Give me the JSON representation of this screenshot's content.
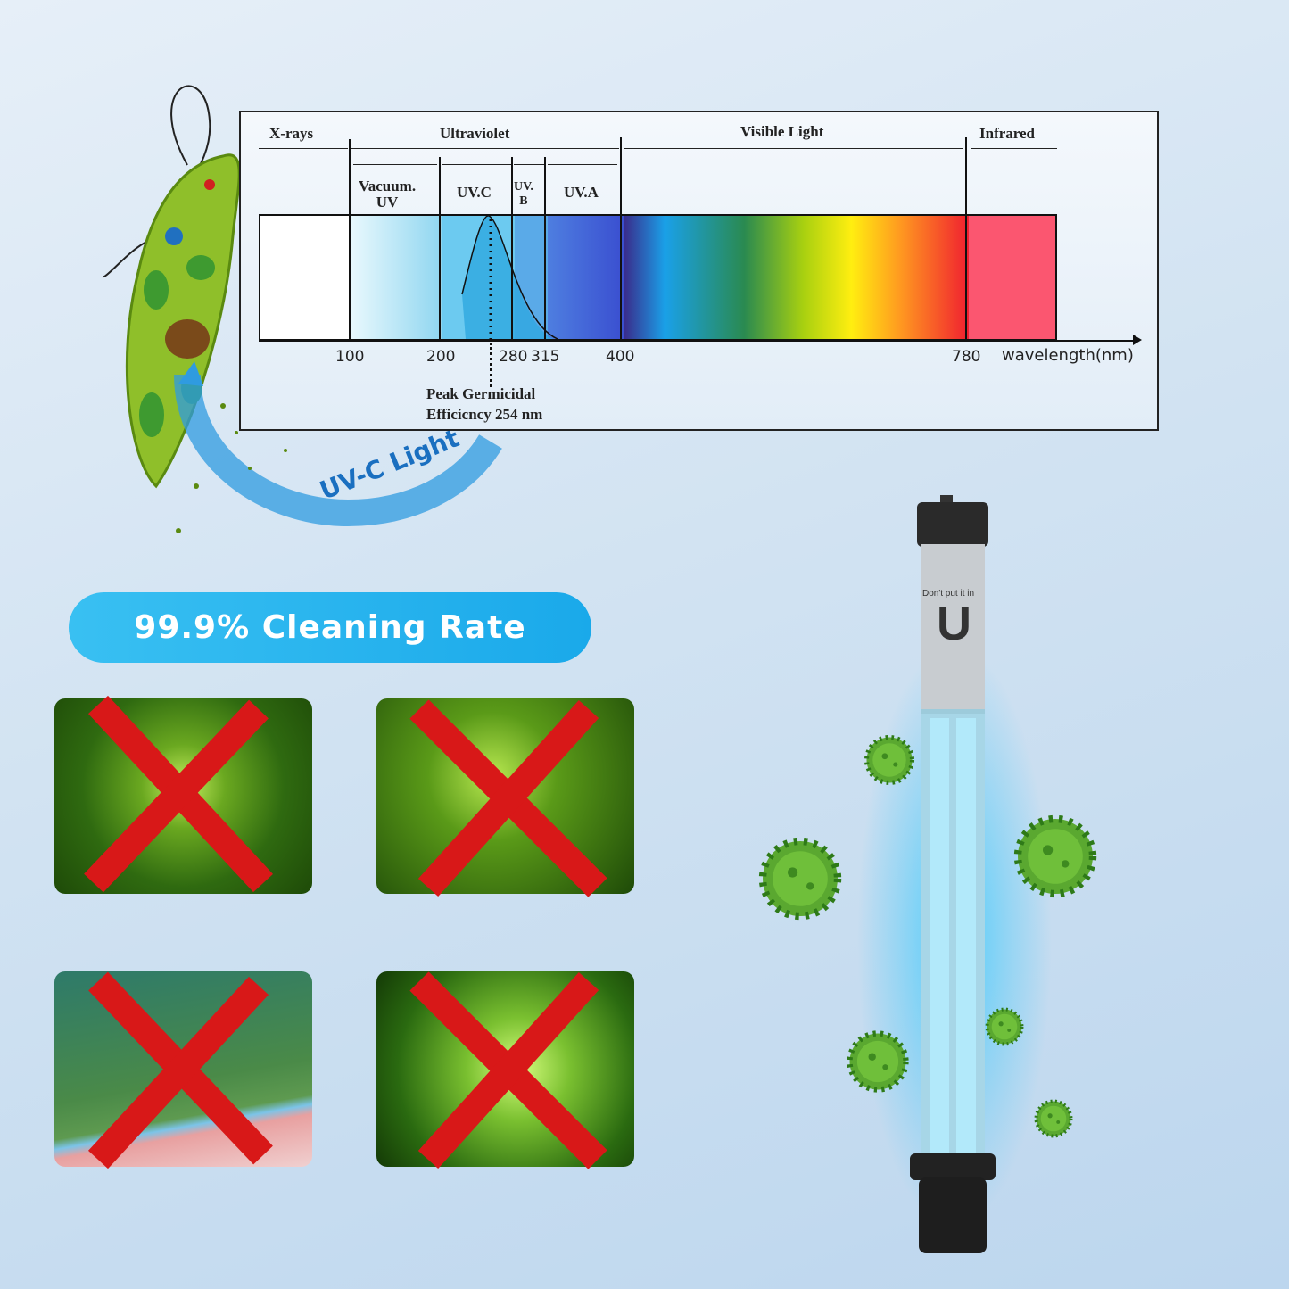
{
  "spectrum": {
    "regions": {
      "xrays": "X-rays",
      "ultraviolet": "Ultraviolet",
      "visible": "Visible Light",
      "infrared": "Infrared"
    },
    "subregions": {
      "vacuum_uv_1": "Vacuum.",
      "vacuum_uv_2": "UV",
      "uvc": "UV.C",
      "uvb_1": "UV.",
      "uvb_2": "B",
      "uva": "UV.A"
    },
    "ticks": [
      "100",
      "200",
      "280",
      "315",
      "400",
      "780"
    ],
    "axis_label": "wavelength(nm)",
    "peak_note_1": "Peak Germicidal",
    "peak_note_2": "Efficicncy 254 nm"
  },
  "uvc_label": "UV-C Light",
  "cleaning_rate": "99.9% Cleaning Rate",
  "tiles": [
    "virus",
    "bacteria",
    "pool-algae",
    "microbes"
  ],
  "lamp": {
    "print_text": "Don't put it in",
    "logo_letter": "U"
  },
  "colors": {
    "pill": "#22b0ee",
    "cross": "#d81818",
    "glow": "#28c8ff"
  }
}
